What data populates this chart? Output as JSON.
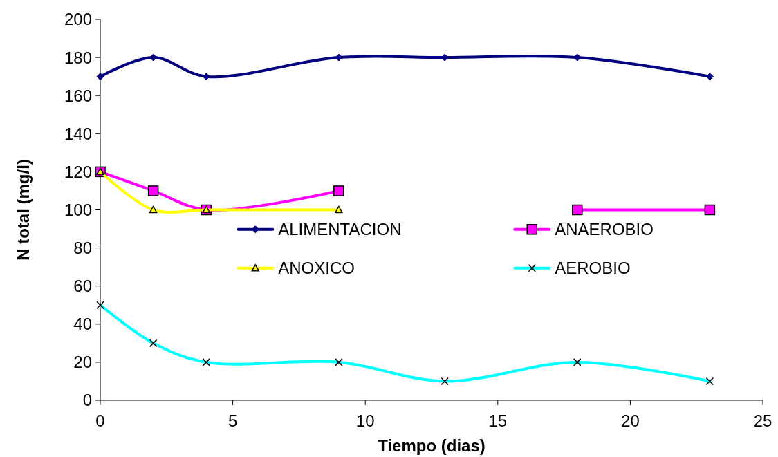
{
  "chart_data": {
    "type": "line",
    "xlabel": "Tiempo (dias)",
    "ylabel": "N total (mg/l)",
    "x": [
      0,
      2,
      4,
      9,
      13,
      18,
      23
    ],
    "xlim": [
      0,
      25
    ],
    "xticks": [
      0,
      5,
      10,
      15,
      20,
      25
    ],
    "ylim": [
      0,
      200
    ],
    "yticks": [
      0,
      20,
      40,
      60,
      80,
      100,
      120,
      140,
      160,
      180,
      200
    ],
    "grid": false,
    "legend": "center",
    "series": [
      {
        "name": "ALIMENTACION",
        "color": "#000080",
        "marker": "diamond",
        "values": [
          170,
          180,
          170,
          180,
          180,
          180,
          170
        ]
      },
      {
        "name": "ANAEROBIO",
        "color": "#ff00ff",
        "marker": "square",
        "values": [
          120,
          110,
          100,
          110,
          null,
          100,
          100
        ]
      },
      {
        "name": "ANOXICO",
        "color": "#ffff00",
        "marker": "triangle",
        "values": [
          120,
          100,
          100,
          100,
          null,
          null,
          null
        ]
      },
      {
        "name": "AEROBIO",
        "color": "#00ffff",
        "marker": "cross",
        "values": [
          50,
          30,
          20,
          20,
          10,
          20,
          10
        ]
      }
    ]
  }
}
